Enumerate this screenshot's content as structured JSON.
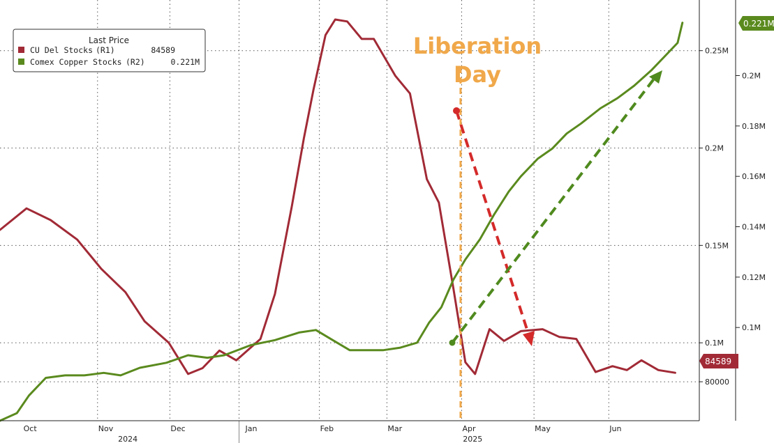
{
  "chart_data": {
    "type": "line",
    "legend": {
      "title": "Last Price",
      "placement": "top-left",
      "entries": [
        {
          "name": "CU Del Stocks",
          "axis": "(R1)",
          "value": "84589",
          "color": "#a12a36"
        },
        {
          "name": "Comex Copper Stocks",
          "axis": "(R2)",
          "value": "0.221M",
          "color": "#5a8a1e"
        }
      ]
    },
    "annotation": {
      "line1": "Liberation",
      "line2": "Day",
      "date": "2025-04-02",
      "color": "#f0a84a"
    },
    "x_axis": {
      "type": "date",
      "range": [
        "2024-09-23",
        "2025-07-10"
      ],
      "month_labels": [
        {
          "date": "2024-10-01",
          "label": "Oct"
        },
        {
          "date": "2024-11-01",
          "label": "Nov"
        },
        {
          "date": "2024-12-01",
          "label": "Dec"
        },
        {
          "date": "2025-01-01",
          "label": "Jan"
        },
        {
          "date": "2025-02-01",
          "label": "Feb"
        },
        {
          "date": "2025-03-01",
          "label": "Mar"
        },
        {
          "date": "2025-04-01",
          "label": "Apr"
        },
        {
          "date": "2025-05-01",
          "label": "May"
        },
        {
          "date": "2025-06-01",
          "label": "Jun"
        }
      ],
      "year_labels": [
        {
          "date": "2024-11-15",
          "label": "2024"
        },
        {
          "date": "2025-04-07",
          "label": "2025"
        }
      ],
      "year_boundary": "2025-01-01"
    },
    "y_axis_r1": {
      "range": [
        60000,
        276000
      ],
      "ticks": [
        {
          "value": 80000,
          "label": "80000"
        },
        {
          "value": 100000,
          "label": "0.1M"
        },
        {
          "value": 150000,
          "label": "0.15M"
        },
        {
          "value": 200000,
          "label": "0.2M"
        },
        {
          "value": 250000,
          "label": "0.25M"
        }
      ],
      "last_badge": "84589"
    },
    "y_axis_r2": {
      "range": [
        63000,
        230000
      ],
      "ticks": [
        {
          "value": 100000,
          "label": "0.1M"
        },
        {
          "value": 120000,
          "label": "0.12M"
        },
        {
          "value": 140000,
          "label": "0.14M"
        },
        {
          "value": 160000,
          "label": "0.16M"
        },
        {
          "value": 180000,
          "label": "0.18M"
        },
        {
          "value": 200000,
          "label": "0.2M"
        }
      ],
      "last_badge": "0.221M"
    },
    "grid": "dotted, horizontal at R1 ticks and vertical at months",
    "series": [
      {
        "name": "CU Del Stocks",
        "axis": "R1",
        "color": "#a12a36",
        "x": [
          "2024-09-23",
          "2024-10-04",
          "2024-10-14",
          "2024-10-25",
          "2024-11-04",
          "2024-11-14",
          "2024-11-22",
          "2024-12-02",
          "2024-12-10",
          "2024-12-16",
          "2024-12-23",
          "2024-12-30",
          "2025-01-09",
          "2025-01-15",
          "2025-01-22",
          "2025-01-27",
          "2025-01-31",
          "2025-02-05",
          "2025-02-09",
          "2025-02-14",
          "2025-02-20",
          "2025-02-25",
          "2025-03-06",
          "2025-03-12",
          "2025-03-19",
          "2025-03-24",
          "2025-03-30",
          "2025-04-04",
          "2025-04-08",
          "2025-04-14",
          "2025-04-20",
          "2025-04-27",
          "2025-05-06",
          "2025-05-13",
          "2025-05-20",
          "2025-05-28",
          "2025-06-04",
          "2025-06-10",
          "2025-06-16",
          "2025-06-23",
          "2025-06-30"
        ],
        "values": [
          158000,
          169000,
          163000,
          153000,
          138000,
          126000,
          111000,
          100000,
          84000,
          87000,
          96000,
          91000,
          102000,
          125000,
          170000,
          205000,
          230000,
          258000,
          266000,
          265000,
          256000,
          256000,
          237000,
          228000,
          184000,
          172000,
          128000,
          90000,
          84000,
          107000,
          101000,
          106000,
          107000,
          103000,
          102000,
          85000,
          88000,
          86000,
          91000,
          86000,
          84589
        ]
      },
      {
        "name": "Comex Copper Stocks",
        "axis": "R2",
        "color": "#5a8a1e",
        "x": [
          "2024-09-23",
          "2024-09-30",
          "2024-10-05",
          "2024-10-12",
          "2024-10-20",
          "2024-10-28",
          "2024-11-05",
          "2024-11-12",
          "2024-11-20",
          "2024-12-01",
          "2024-12-10",
          "2024-12-18",
          "2024-12-25",
          "2025-01-05",
          "2025-01-15",
          "2025-01-25",
          "2025-02-01",
          "2025-02-08",
          "2025-02-15",
          "2025-02-22",
          "2025-03-01",
          "2025-03-08",
          "2025-03-15",
          "2025-03-20",
          "2025-03-25",
          "2025-03-30",
          "2025-04-04",
          "2025-04-10",
          "2025-04-16",
          "2025-04-22",
          "2025-04-27",
          "2025-05-04",
          "2025-05-10",
          "2025-05-16",
          "2025-05-22",
          "2025-05-30",
          "2025-06-06",
          "2025-06-13",
          "2025-06-20",
          "2025-06-27",
          "2025-07-01",
          "2025-07-03"
        ],
        "values": [
          63000,
          66000,
          73000,
          80000,
          81000,
          81000,
          82000,
          81000,
          84000,
          86000,
          89000,
          88000,
          89000,
          93000,
          95000,
          98000,
          99000,
          95000,
          91000,
          91000,
          91000,
          92000,
          94000,
          102000,
          108000,
          119000,
          127000,
          135000,
          145000,
          154000,
          160000,
          167000,
          171000,
          177000,
          181000,
          187000,
          191000,
          196000,
          202000,
          209000,
          213000,
          221000
        ]
      }
    ]
  }
}
